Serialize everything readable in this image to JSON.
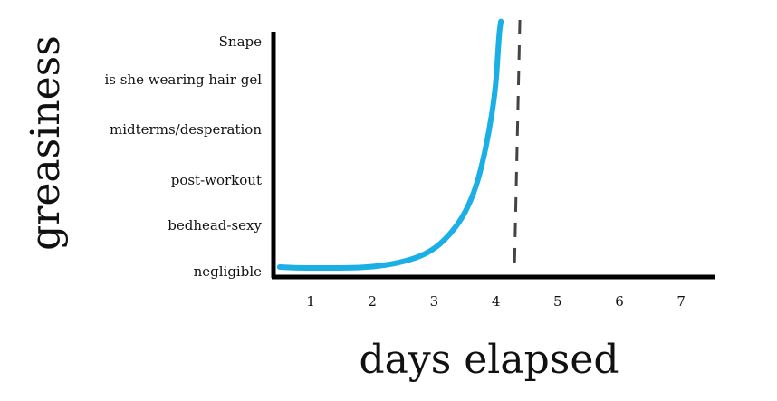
{
  "chart_data": {
    "type": "line",
    "title": "",
    "xlabel": "days elapsed",
    "ylabel": "greasiness",
    "x_ticks": [
      "1",
      "2",
      "3",
      "4",
      "5",
      "6",
      "7"
    ],
    "y_categories": [
      "negligible",
      "bedhead-sexy",
      "post-workout",
      "midterms/desperation",
      "is she wearing hair gel",
      "Snape"
    ],
    "xlim": [
      0.5,
      7.5
    ],
    "ylim": [
      -0.1,
      5.1
    ],
    "series": [
      {
        "color": "#1ab0e6",
        "points": [
          [
            0.5,
            0.02
          ],
          [
            0.8,
            0.0
          ],
          [
            1.2,
            0.0
          ],
          [
            1.6,
            0.0
          ],
          [
            2.0,
            0.02
          ],
          [
            2.4,
            0.1
          ],
          [
            2.8,
            0.25
          ],
          [
            3.1,
            0.5
          ],
          [
            3.4,
            0.95
          ],
          [
            3.6,
            1.45
          ],
          [
            3.75,
            2.05
          ],
          [
            3.9,
            3.0
          ],
          [
            4.0,
            3.9
          ],
          [
            4.05,
            5.0
          ],
          [
            4.08,
            5.3
          ]
        ]
      }
    ],
    "vline": {
      "x": 4.3,
      "style": "dashed",
      "color": "#444444"
    },
    "grid": false
  }
}
